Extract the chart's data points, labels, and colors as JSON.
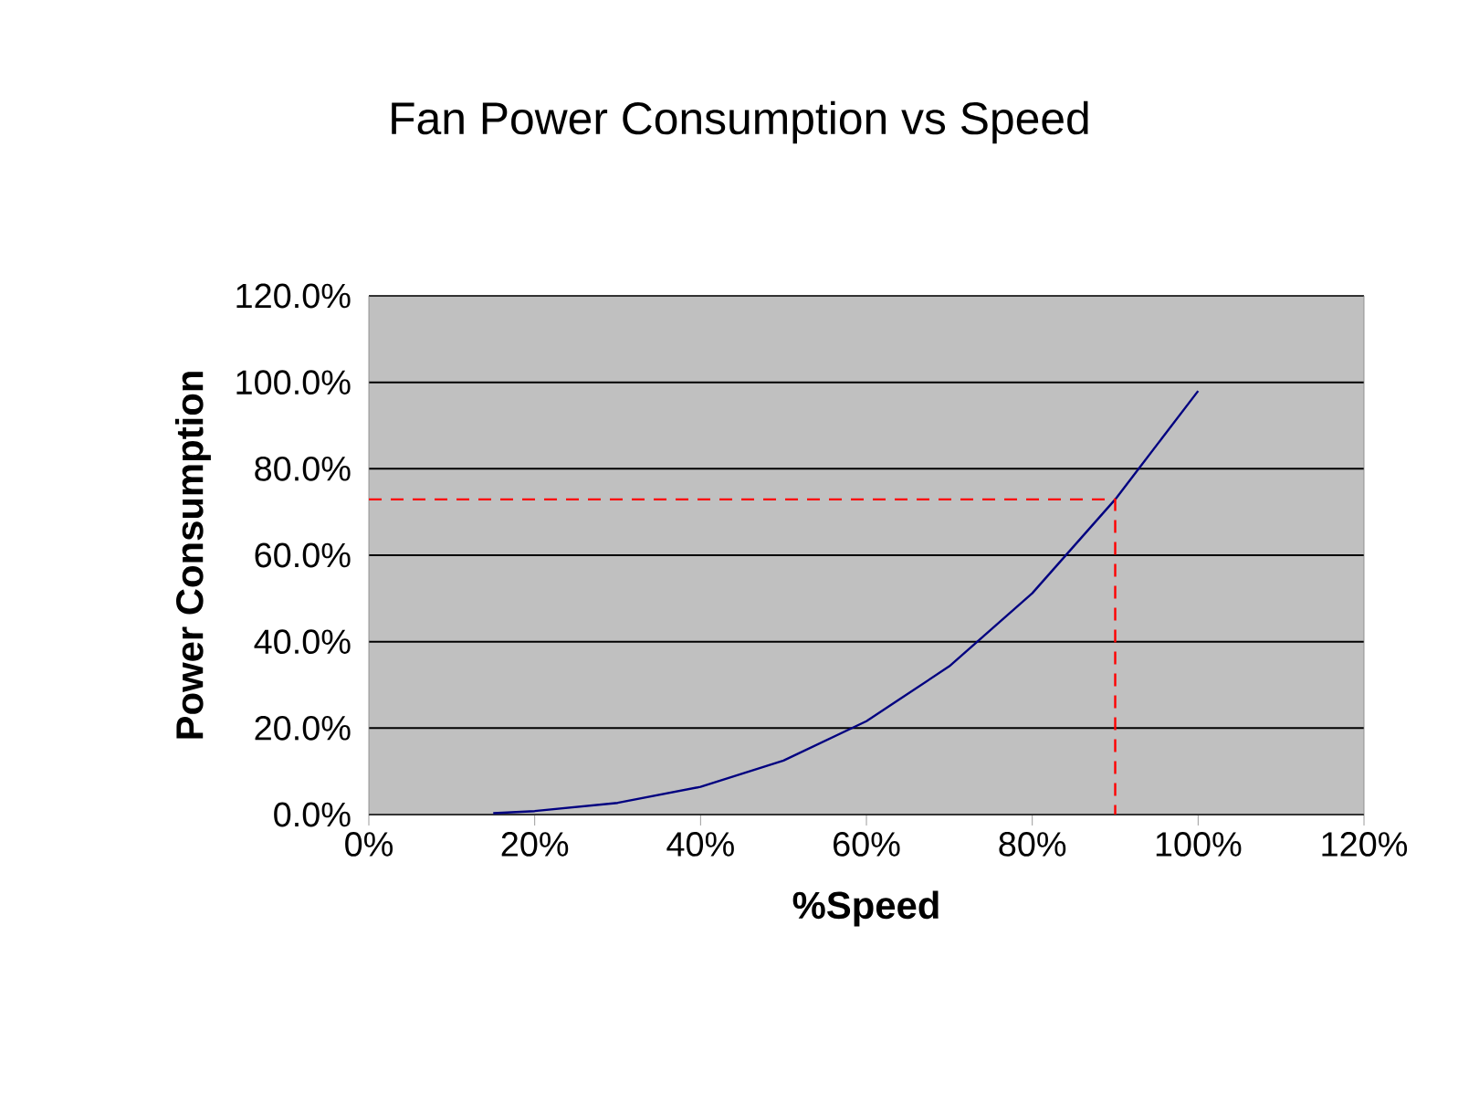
{
  "chart_data": {
    "type": "line",
    "title": "Fan Power Consumption vs Speed",
    "xlabel": "%Speed",
    "ylabel": "Power Consumption",
    "xlim": [
      0,
      120
    ],
    "ylim": [
      0,
      120
    ],
    "xticks": [
      {
        "value": 0,
        "label": "0%"
      },
      {
        "value": 20,
        "label": "20%"
      },
      {
        "value": 40,
        "label": "40%"
      },
      {
        "value": 60,
        "label": "60%"
      },
      {
        "value": 80,
        "label": "80%"
      },
      {
        "value": 100,
        "label": "100%"
      },
      {
        "value": 120,
        "label": "120%"
      }
    ],
    "yticks": [
      {
        "value": 0,
        "label": "0.0%"
      },
      {
        "value": 20,
        "label": "20.0%"
      },
      {
        "value": 40,
        "label": "40.0%"
      },
      {
        "value": 60,
        "label": "60.0%"
      },
      {
        "value": 80,
        "label": "80.0%"
      },
      {
        "value": 100,
        "label": "100.0%"
      },
      {
        "value": 120,
        "label": "120.0%"
      }
    ],
    "grid": "y",
    "series": [
      {
        "type": "line",
        "color": "#000080",
        "line_style": "solid",
        "x": [
          15,
          20,
          30,
          40,
          50,
          60,
          70,
          80,
          90,
          100
        ],
        "values": [
          0.3,
          0.8,
          2.7,
          6.4,
          12.5,
          21.6,
          34.3,
          51.2,
          72.9,
          98
        ]
      },
      {
        "type": "line",
        "color": "#ff0000",
        "line_style": "dashed",
        "x": [
          0,
          90,
          90
        ],
        "values": [
          72.9,
          72.9,
          0
        ]
      }
    ]
  }
}
